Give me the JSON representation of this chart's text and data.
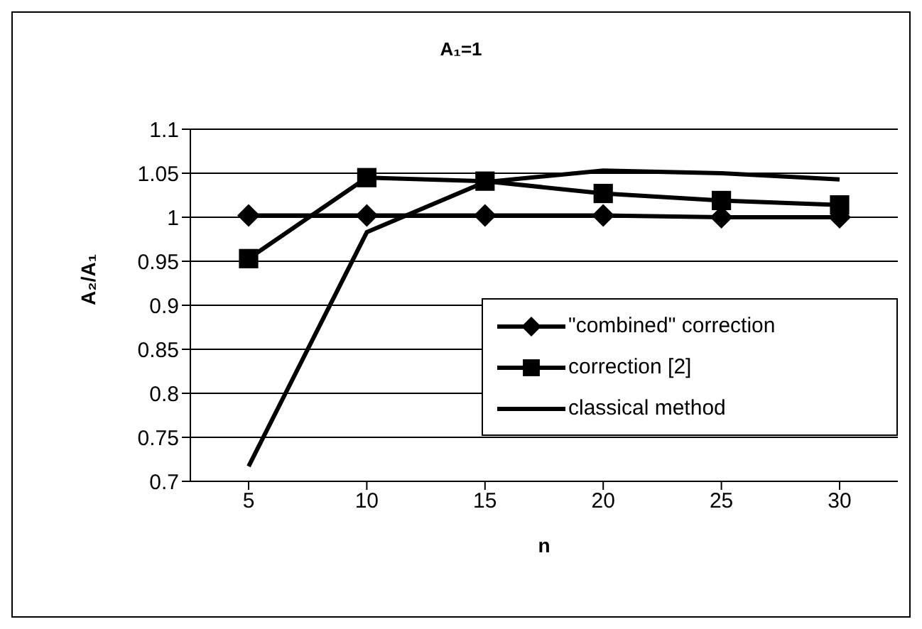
{
  "chart_data": {
    "type": "line",
    "title": "A₁=1",
    "xlabel": "n",
    "ylabel": "A₂/A₁",
    "categories": [
      "5",
      "10",
      "15",
      "20",
      "25",
      "30"
    ],
    "series": [
      {
        "name": "\"combined\" correction",
        "color": "#000000",
        "marker": "diamond",
        "values": [
          1.002,
          1.002,
          1.002,
          1.002,
          1.0,
          1.0
        ]
      },
      {
        "name": "correction [2]",
        "color": "#000000",
        "marker": "square",
        "values": [
          0.953,
          1.045,
          1.041,
          1.027,
          1.019,
          1.014
        ]
      },
      {
        "name": "classical method",
        "color": "#000000",
        "marker": "none",
        "values": [
          0.717,
          0.983,
          1.04,
          1.053,
          1.05,
          1.043
        ]
      }
    ],
    "ylim": [
      0.7,
      1.1
    ],
    "yticks": [
      0.7,
      0.75,
      0.8,
      0.85,
      0.9,
      0.95,
      1,
      1.05,
      1.1
    ],
    "grid": "y",
    "legend": "bottom right",
    "line_style": "solid"
  }
}
